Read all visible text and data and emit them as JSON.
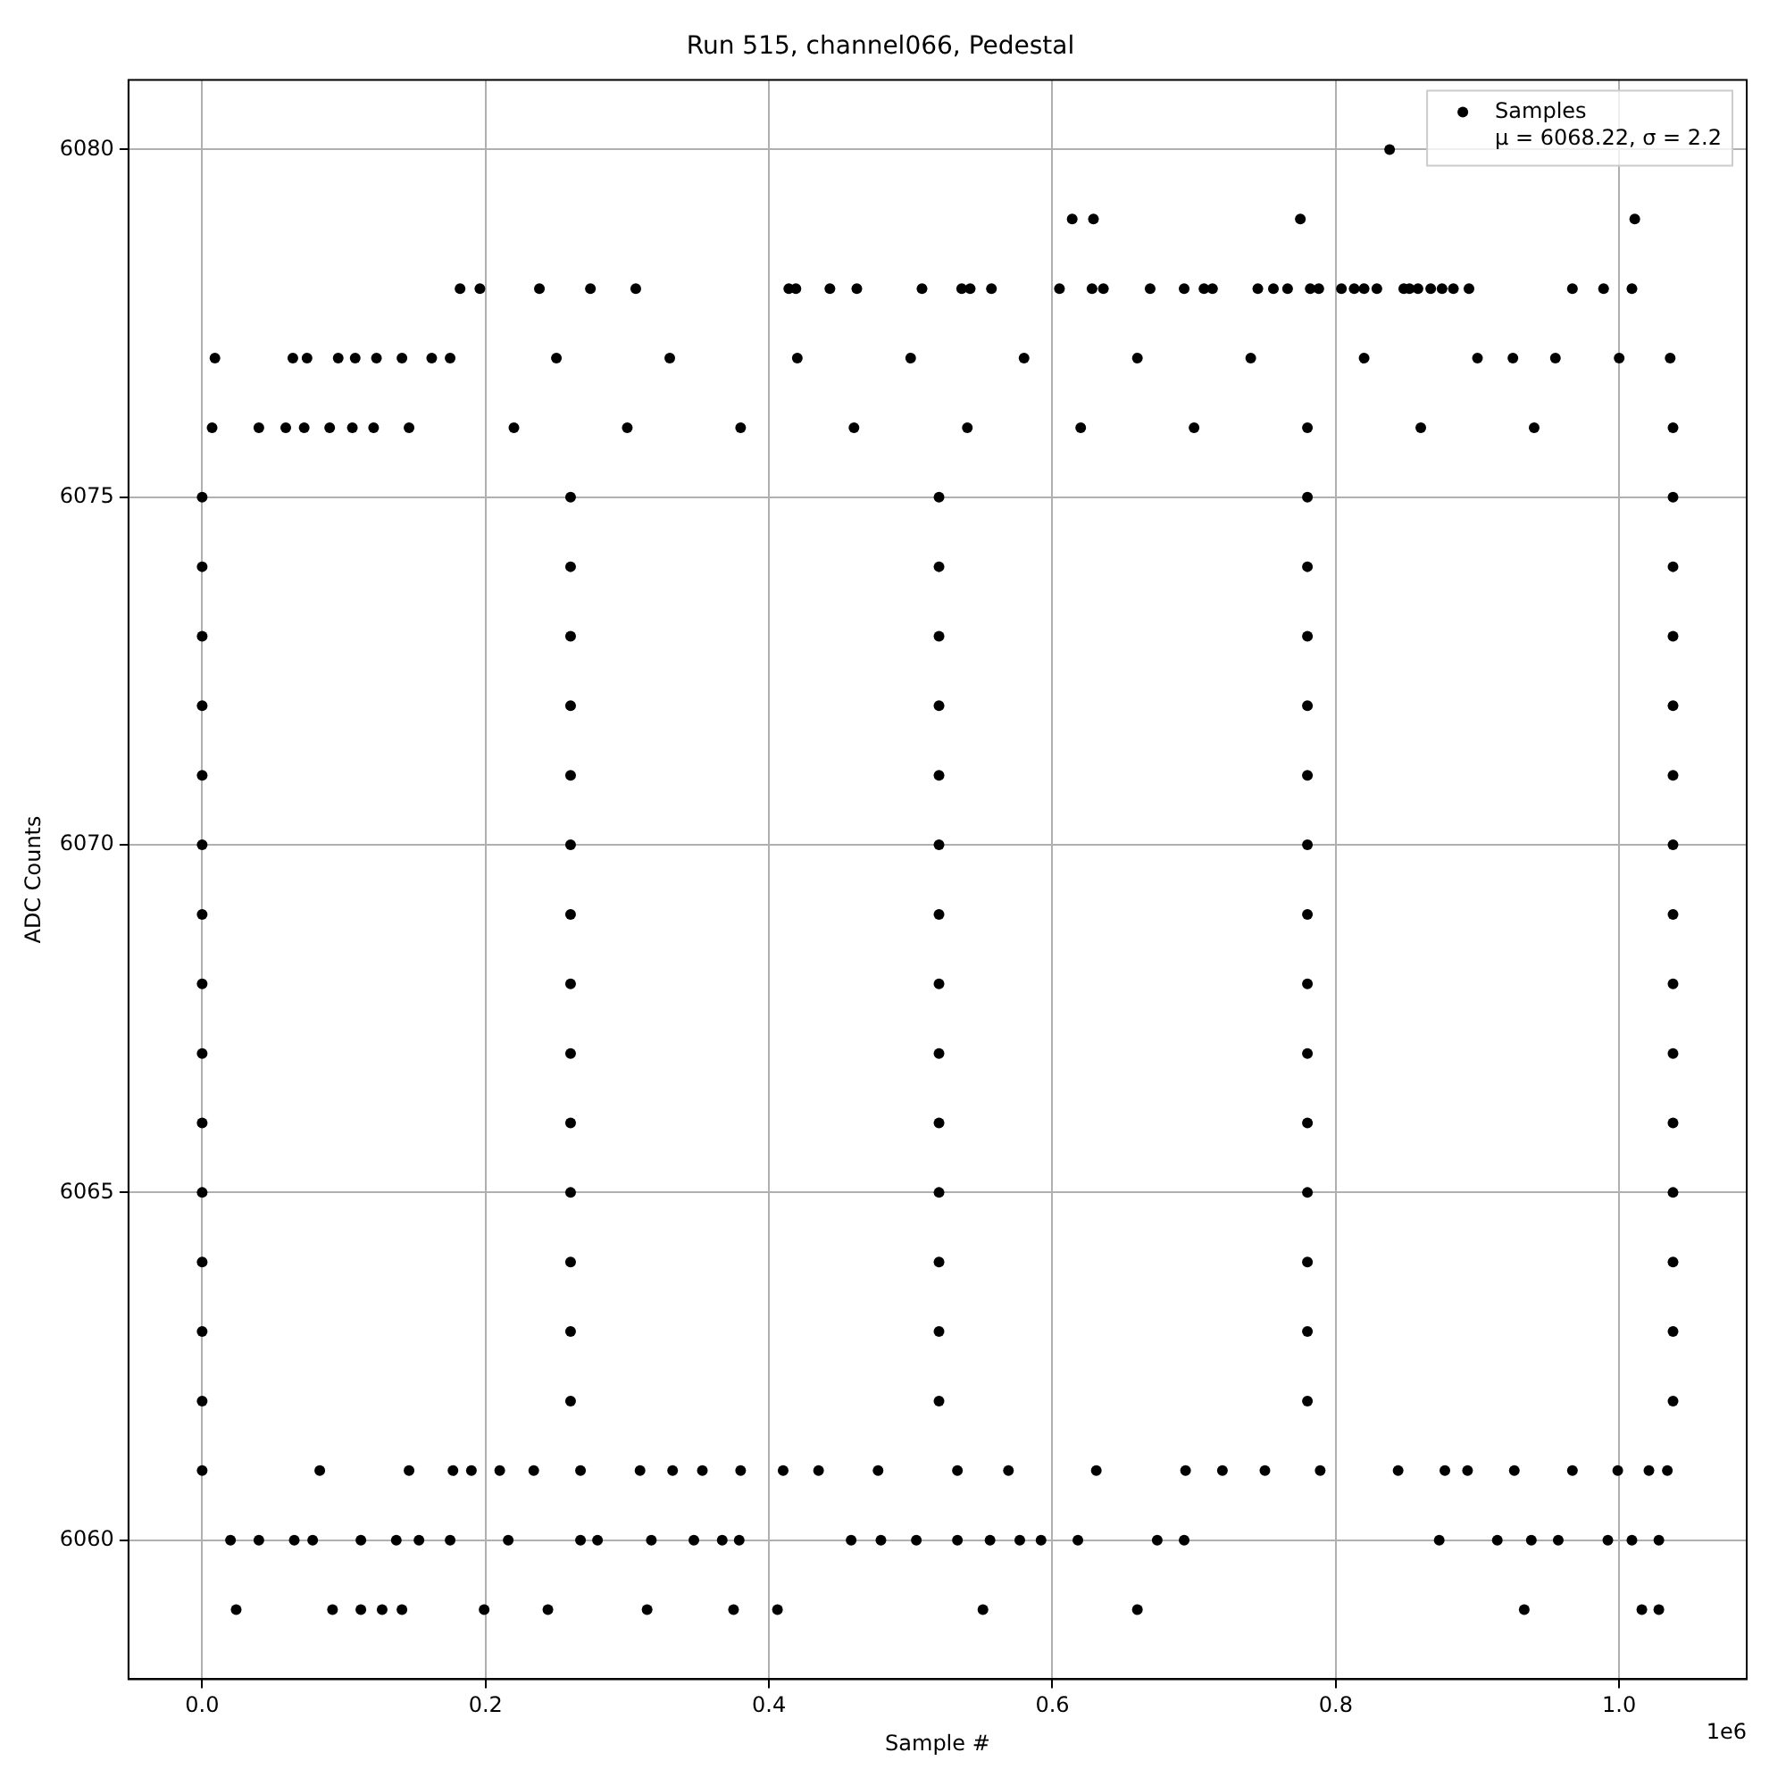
{
  "chart_data": {
    "type": "scatter",
    "title": "Run 515, channel066, Pedestal",
    "xlabel": "Sample #",
    "ylabel": "ADC Counts",
    "xlim": [
      -0.052,
      1.09
    ],
    "xticks": [
      {
        "value": 0,
        "label": "0.0"
      },
      0.2,
      0.4,
      0.6,
      0.8,
      {
        "value": 1,
        "label": "1.0"
      }
    ],
    "ylim": [
      6058,
      6081
    ],
    "yticks": [
      6060,
      6065,
      6070,
      6075,
      6080
    ],
    "grid": true,
    "legend": "top right",
    "marker": "circle",
    "annotations": [
      "1e6"
    ],
    "series": [
      {
        "name": "Samples\nμ = 6068.22, σ = 2.2",
        "color": "#000000",
        "x": [
          0.838,
          0.614,
          0.629,
          0.775,
          1.011,
          0.182,
          0.196,
          0.238,
          0.274,
          0.306,
          0.414,
          0.419,
          0.443,
          0.462,
          0.508,
          0.536,
          0.542,
          0.557,
          0.605,
          0.628,
          0.636,
          0.669,
          0.693,
          0.707,
          0.713,
          0.745,
          0.756,
          0.766,
          0.782,
          0.788,
          0.804,
          0.813,
          0.82,
          0.829,
          0.848,
          0.852,
          0.858,
          0.867,
          0.875,
          0.883,
          0.894,
          0.967,
          0.989,
          1.009,
          0.009,
          0.064,
          0.074,
          0.096,
          0.108,
          0.123,
          0.141,
          0.162,
          0.175,
          0.25,
          0.33,
          0.42,
          0.5,
          0.58,
          0.66,
          0.74,
          0.82,
          0.9,
          0.925,
          0.955,
          1.0,
          1.036,
          0.007,
          0.04,
          0.059,
          0.072,
          0.09,
          0.106,
          0.121,
          0.146,
          0.22,
          0.3,
          0.38,
          0.46,
          0.54,
          0.62,
          0.7,
          0.78,
          0.86,
          0.94,
          1.038,
          0,
          0.26,
          0.52,
          0.78,
          1.038,
          0,
          0.26,
          0.52,
          0.78,
          1.038,
          0,
          0.26,
          0.52,
          0.78,
          1.038,
          0,
          0.26,
          0.52,
          0.78,
          1.038,
          0,
          0.26,
          0.52,
          0.78,
          1.038,
          0,
          0.26,
          0.52,
          0.78,
          1.038,
          0,
          0.26,
          0.52,
          0.78,
          1.038,
          0,
          0.26,
          0.52,
          0.78,
          1.038,
          0,
          0.26,
          0.52,
          0.78,
          1.038,
          0,
          0.26,
          0.52,
          0.78,
          1.038,
          0,
          0.26,
          0.52,
          0.78,
          1.038,
          0,
          0.26,
          0.52,
          0.78,
          1.038,
          0,
          0.26,
          0.52,
          0.78,
          1.038,
          0,
          0.26,
          0.52,
          0.78,
          1.038,
          0,
          0.083,
          0.146,
          0.177,
          0.19,
          0.21,
          0.234,
          0.267,
          0.309,
          0.332,
          0.353,
          0.38,
          0.41,
          0.435,
          0.477,
          0.533,
          0.569,
          0.631,
          0.694,
          0.72,
          0.75,
          0.789,
          0.844,
          0.877,
          0.893,
          0.926,
          0.967,
          0.999,
          1.021,
          1.034,
          0.02,
          0.04,
          0.065,
          0.078,
          0.112,
          0.137,
          0.153,
          0.175,
          0.216,
          0.267,
          0.279,
          0.317,
          0.347,
          0.367,
          0.379,
          0.458,
          0.479,
          0.504,
          0.533,
          0.556,
          0.577,
          0.592,
          0.618,
          0.674,
          0.693,
          0.873,
          0.914,
          0.938,
          0.957,
          0.992,
          1.009,
          1.028,
          0.024,
          0.092,
          0.112,
          0.127,
          0.141,
          0.199,
          0.244,
          0.314,
          0.375,
          0.406,
          0.551,
          0.66,
          0.933,
          1.016,
          1.028
        ],
        "values": [
          6080,
          6079,
          6079,
          6079,
          6079,
          6078,
          6078,
          6078,
          6078,
          6078,
          6078,
          6078,
          6078,
          6078,
          6078,
          6078,
          6078,
          6078,
          6078,
          6078,
          6078,
          6078,
          6078,
          6078,
          6078,
          6078,
          6078,
          6078,
          6078,
          6078,
          6078,
          6078,
          6078,
          6078,
          6078,
          6078,
          6078,
          6078,
          6078,
          6078,
          6078,
          6078,
          6078,
          6078,
          6077,
          6077,
          6077,
          6077,
          6077,
          6077,
          6077,
          6077,
          6077,
          6077,
          6077,
          6077,
          6077,
          6077,
          6077,
          6077,
          6077,
          6077,
          6077,
          6077,
          6077,
          6077,
          6076,
          6076,
          6076,
          6076,
          6076,
          6076,
          6076,
          6076,
          6076,
          6076,
          6076,
          6076,
          6076,
          6076,
          6076,
          6076,
          6076,
          6076,
          6076,
          6075,
          6075,
          6075,
          6075,
          6075,
          6074,
          6074,
          6074,
          6074,
          6074,
          6073,
          6073,
          6073,
          6073,
          6073,
          6072,
          6072,
          6072,
          6072,
          6072,
          6071,
          6071,
          6071,
          6071,
          6071,
          6070,
          6070,
          6070,
          6070,
          6070,
          6069,
          6069,
          6069,
          6069,
          6069,
          6068,
          6068,
          6068,
          6068,
          6068,
          6067,
          6067,
          6067,
          6067,
          6067,
          6066,
          6066,
          6066,
          6066,
          6066,
          6065,
          6065,
          6065,
          6065,
          6065,
          6064,
          6064,
          6064,
          6064,
          6064,
          6063,
          6063,
          6063,
          6063,
          6063,
          6062,
          6062,
          6062,
          6062,
          6062,
          6061,
          6061,
          6061,
          6061,
          6061,
          6061,
          6061,
          6061,
          6061,
          6061,
          6061,
          6061,
          6061,
          6061,
          6061,
          6061,
          6061,
          6061,
          6061,
          6061,
          6061,
          6061,
          6061,
          6061,
          6061,
          6061,
          6061,
          6061,
          6061,
          6061,
          6060,
          6060,
          6060,
          6060,
          6060,
          6060,
          6060,
          6060,
          6060,
          6060,
          6060,
          6060,
          6060,
          6060,
          6060,
          6060,
          6060,
          6060,
          6060,
          6060,
          6060,
          6060,
          6060,
          6060,
          6060,
          6060,
          6060,
          6060,
          6060,
          6060,
          6060,
          6060,
          6059,
          6059,
          6059,
          6059,
          6059,
          6059,
          6059,
          6059,
          6059,
          6059,
          6059,
          6059,
          6059,
          6059,
          6059
        ]
      }
    ]
  }
}
